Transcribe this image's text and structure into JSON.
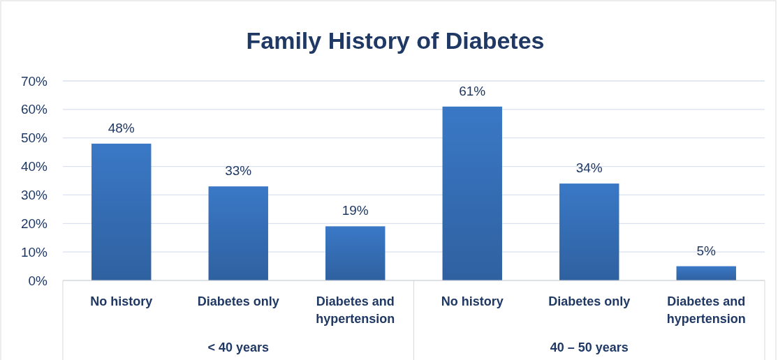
{
  "chart_data": {
    "type": "bar",
    "title": "Family History of Diabetes",
    "categories": [
      "No history",
      "Diabetes only",
      "Diabetes and hypertension",
      "No history",
      "Diabetes only",
      "Diabetes and hypertension"
    ],
    "values": [
      48,
      33,
      19,
      61,
      34,
      5
    ],
    "color": "#3a78c6",
    "ylim": [
      0,
      70
    ],
    "yticks": [
      {
        "value": 0,
        "label": "0%"
      },
      {
        "value": 10,
        "label": "10%"
      },
      {
        "value": 20,
        "label": "20%"
      },
      {
        "value": 30,
        "label": "30%"
      },
      {
        "value": 40,
        "label": "40%"
      },
      {
        "value": 50,
        "label": "50%"
      },
      {
        "value": 60,
        "label": "60%"
      },
      {
        "value": 70,
        "label": "70%"
      }
    ],
    "grid": "y",
    "data_labels": true,
    "value_labels": [
      "48%",
      "33%",
      "19%",
      "61%",
      "34%",
      "5%"
    ],
    "annotations": [
      "< 40 years",
      "40 – 50 years"
    ]
  }
}
